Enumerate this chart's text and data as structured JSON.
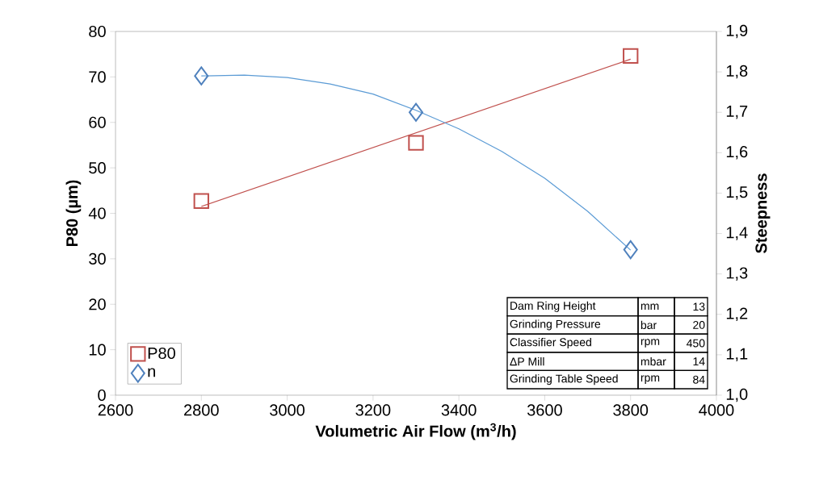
{
  "chart_data": {
    "type": "scatter",
    "xlabel": "Volumetric Air Flow (m$^{3}$/h)",
    "ylabel": "P80 (µm)",
    "y2label": "Steepness",
    "xlim": [
      2600,
      4000
    ],
    "xticks": [
      2600,
      2800,
      3000,
      3200,
      3400,
      3600,
      3800,
      4000
    ],
    "ylim": [
      0,
      80
    ],
    "yticks": [
      0,
      10,
      20,
      30,
      40,
      50,
      60,
      70,
      80
    ],
    "y2lim": [
      1.0,
      1.9
    ],
    "y2ticks": [
      {
        "value": 1.0,
        "label": "1,0"
      },
      {
        "value": 1.1,
        "label": "1,1"
      },
      {
        "value": 1.2,
        "label": "1,2"
      },
      {
        "value": 1.3,
        "label": "1,3"
      },
      {
        "value": 1.4,
        "label": "1,4"
      },
      {
        "value": 1.5,
        "label": "1,5"
      },
      {
        "value": 1.6,
        "label": "1,6"
      },
      {
        "value": 1.7,
        "label": "1,7"
      },
      {
        "value": 1.8,
        "label": "1,8"
      },
      {
        "value": 1.9,
        "label": "1,9"
      }
    ],
    "legend": "bottom left",
    "series": [
      {
        "name": "P80",
        "marker": "square",
        "color": "#c0504d",
        "x": [
          2800,
          3300,
          3800
        ],
        "values": [
          42.7,
          55.5,
          74.6
        ]
      },
      {
        "name": "n",
        "marker": "diamond",
        "color": "#4f81bd",
        "axis": "y2",
        "x": [
          2800,
          3300,
          3800
        ],
        "values": [
          1.79,
          1.7,
          1.36
        ]
      },
      {
        "type": "line",
        "color": "#c0504d",
        "x": [
          2800,
          3800
        ],
        "values": [
          41.5,
          73.9
        ]
      },
      {
        "type": "line",
        "color": "#5b9bd5",
        "axis": "y2",
        "x": [
          2800,
          2900,
          3000,
          3100,
          3200,
          3300,
          3400,
          3500,
          3600,
          3700,
          3800
        ],
        "values": [
          1.79,
          1.792,
          1.786,
          1.77,
          1.745,
          1.705,
          1.659,
          1.603,
          1.537,
          1.455,
          1.359
        ]
      }
    ],
    "annotations": [
      "Dam Ring Height",
      "mm",
      "13",
      "Grinding Pressure",
      "bar",
      "20",
      "Classifier Speed",
      "rpm",
      "450",
      "ΔP Mill",
      "mbar",
      "14",
      "Grinding Table Speed",
      "rpm",
      "84"
    ]
  }
}
